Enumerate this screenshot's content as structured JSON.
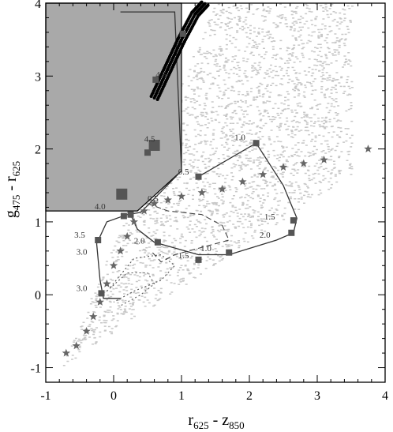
{
  "chart_data": {
    "type": "scatter",
    "xlabel": {
      "main": "r",
      "sub1": "625",
      "mid": " - z",
      "sub2": "850"
    },
    "ylabel": {
      "main": "g",
      "sub1": "475",
      "mid": " - r",
      "sub2": "625"
    },
    "xlim": [
      -1,
      4
    ],
    "ylim": [
      -1.2,
      4
    ],
    "x_ticks": [
      "-1",
      "0",
      "1",
      "2",
      "3",
      "4"
    ],
    "y_ticks": [
      "-1",
      "0",
      "1",
      "2",
      "3",
      "4"
    ],
    "x_tick_values": [
      -1,
      0,
      1,
      2,
      3,
      4
    ],
    "y_tick_values": [
      -1,
      0,
      1,
      2,
      3,
      4
    ],
    "shaded_region": [
      [
        -1,
        4
      ],
      [
        1,
        4
      ],
      [
        1,
        1.7
      ],
      [
        0.35,
        1.15
      ],
      [
        -1,
        1.15
      ]
    ],
    "track_a": {
      "line": [
        [
          1.25,
          1.62
        ],
        [
          2.1,
          2.08
        ],
        [
          2.5,
          1.5
        ],
        [
          2.7,
          1.05
        ],
        [
          2.65,
          0.85
        ],
        [
          2.4,
          0.75
        ],
        [
          1.7,
          0.55
        ],
        [
          1.25,
          0.55
        ],
        [
          0.6,
          0.72
        ],
        [
          0.35,
          0.9
        ],
        [
          0.25,
          1.1
        ]
      ],
      "markers": [
        [
          1.25,
          1.62
        ],
        [
          2.1,
          2.08
        ],
        [
          2.65,
          1.02
        ],
        [
          2.62,
          0.85
        ],
        [
          1.7,
          0.58
        ],
        [
          1.25,
          0.48
        ],
        [
          0.65,
          0.72
        ],
        [
          0.25,
          1.1
        ]
      ],
      "labels": [
        {
          "text": "1.0",
          "x": 1.78,
          "y": 2.12
        },
        {
          "text": "0.5",
          "x": 0.95,
          "y": 1.65
        },
        {
          "text": "1.5",
          "x": 2.22,
          "y": 1.03
        },
        {
          "text": "2.0",
          "x": 2.15,
          "y": 0.78
        },
        {
          "text": "1.0",
          "x": 1.28,
          "y": 0.6
        },
        {
          "text": "1.5",
          "x": 0.95,
          "y": 0.5
        },
        {
          "text": "2.0",
          "x": 0.3,
          "y": 0.7
        },
        {
          "text": "0.5",
          "x": 0.5,
          "y": 1.28
        }
      ]
    },
    "track_b": {
      "line": [
        [
          0.1,
          3.88
        ],
        [
          0.9,
          3.88
        ],
        [
          1.0,
          1.7
        ],
        [
          0.4,
          1.13
        ],
        [
          0.2,
          1.1
        ],
        [
          -0.1,
          1.0
        ],
        [
          -0.25,
          0.7
        ],
        [
          -0.2,
          0.2
        ],
        [
          -0.15,
          -0.05
        ],
        [
          0.1,
          -0.05
        ]
      ],
      "markers": [
        [
          1.02,
          3.58
        ],
        [
          0.62,
          2.95
        ],
        [
          0.6,
          2.05
        ],
        [
          0.5,
          1.95
        ],
        [
          0.12,
          1.38
        ],
        [
          0.15,
          1.08
        ],
        [
          -0.23,
          0.75
        ],
        [
          -0.18,
          0.02
        ]
      ],
      "labels": [
        {
          "text": "4.5",
          "x": 0.62,
          "y": 2.98
        },
        {
          "text": "4.5",
          "x": 0.45,
          "y": 2.1
        },
        {
          "text": "4.0",
          "x": -0.28,
          "y": 1.17
        },
        {
          "text": "3.5",
          "x": -0.58,
          "y": 0.78
        },
        {
          "text": "3.0",
          "x": -0.55,
          "y": 0.55
        },
        {
          "text": "3.0",
          "x": -0.55,
          "y": 0.05
        }
      ]
    },
    "dashed_curve": [
      [
        0.5,
        1.25
      ],
      [
        0.8,
        1.15
      ],
      [
        1.3,
        1.1
      ],
      [
        1.6,
        0.95
      ],
      [
        1.7,
        0.75
      ],
      [
        1.3,
        0.65
      ],
      [
        0.9,
        0.55
      ],
      [
        0.7,
        0.45
      ],
      [
        0.55,
        0.6
      ]
    ],
    "dotted_curves": [
      [
        [
          -0.05,
          0.1
        ],
        [
          0.3,
          0.5
        ],
        [
          0.7,
          0.55
        ],
        [
          0.9,
          0.4
        ],
        [
          0.7,
          0.2
        ],
        [
          0.3,
          0.05
        ],
        [
          0.0,
          -0.1
        ]
      ],
      [
        [
          -0.1,
          0.05
        ],
        [
          0.2,
          0.3
        ],
        [
          0.5,
          0.3
        ],
        [
          0.6,
          0.15
        ],
        [
          0.4,
          0.0
        ],
        [
          0.1,
          -0.15
        ]
      ]
    ],
    "black_sequence": [
      [
        0.6,
        2.7
      ],
      [
        0.8,
        3.1
      ],
      [
        1.0,
        3.5
      ],
      [
        1.2,
        3.85
      ],
      [
        1.35,
        4.0
      ]
    ],
    "star_sequence": [
      [
        -0.7,
        -0.8
      ],
      [
        -0.55,
        -0.7
      ],
      [
        -0.4,
        -0.5
      ],
      [
        -0.3,
        -0.3
      ],
      [
        -0.2,
        -0.1
      ],
      [
        -0.1,
        0.15
      ],
      [
        0.0,
        0.4
      ],
      [
        0.1,
        0.6
      ],
      [
        0.2,
        0.8
      ],
      [
        0.3,
        1.0
      ],
      [
        0.45,
        1.15
      ],
      [
        0.6,
        1.25
      ],
      [
        0.8,
        1.3
      ],
      [
        1.0,
        1.35
      ],
      [
        1.3,
        1.4
      ],
      [
        1.6,
        1.45
      ],
      [
        1.9,
        1.55
      ],
      [
        2.2,
        1.65
      ],
      [
        2.5,
        1.75
      ],
      [
        2.8,
        1.8
      ],
      [
        3.1,
        1.85
      ],
      [
        3.75,
        2.0
      ]
    ]
  }
}
